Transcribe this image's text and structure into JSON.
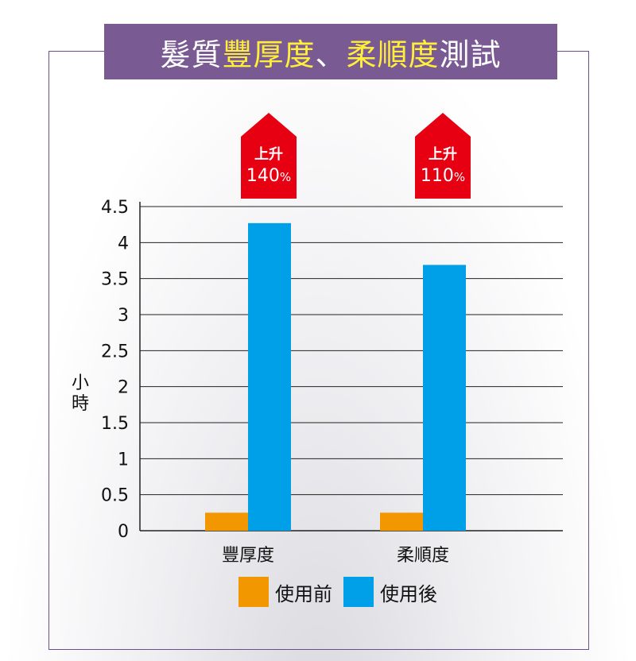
{
  "title": {
    "segments": [
      {
        "text": "髮質",
        "color": "#ffffff"
      },
      {
        "text": "豐厚度",
        "color": "#ffef3a"
      },
      {
        "text": "、",
        "color": "#ffffff"
      },
      {
        "text": "柔順度",
        "color": "#ffef3a"
      },
      {
        "text": "測試",
        "color": "#ffffff"
      }
    ]
  },
  "badges": [
    {
      "line1": "上升",
      "line2": "140",
      "unit": "%"
    },
    {
      "line1": "上升",
      "line2": "110",
      "unit": "%"
    }
  ],
  "colors": {
    "before": "#f29700",
    "after": "#00a0e9",
    "badge": "#e60012",
    "banner": "#7a5a93"
  },
  "chart_data": {
    "type": "bar",
    "categories": [
      "豐厚度",
      "柔順度"
    ],
    "series": [
      {
        "name": "使用前",
        "values": [
          0.25,
          0.25
        ]
      },
      {
        "name": "使用後",
        "values": [
          4.27,
          3.69
        ]
      }
    ],
    "ylabel": "小時",
    "ylim": [
      0,
      4.5
    ],
    "yticks": [
      "0",
      "0.5",
      "1",
      "1.5",
      "2",
      "2.5",
      "3",
      "3.5",
      "4",
      "4.5"
    ],
    "grid": true,
    "legend_position": "bottom"
  }
}
